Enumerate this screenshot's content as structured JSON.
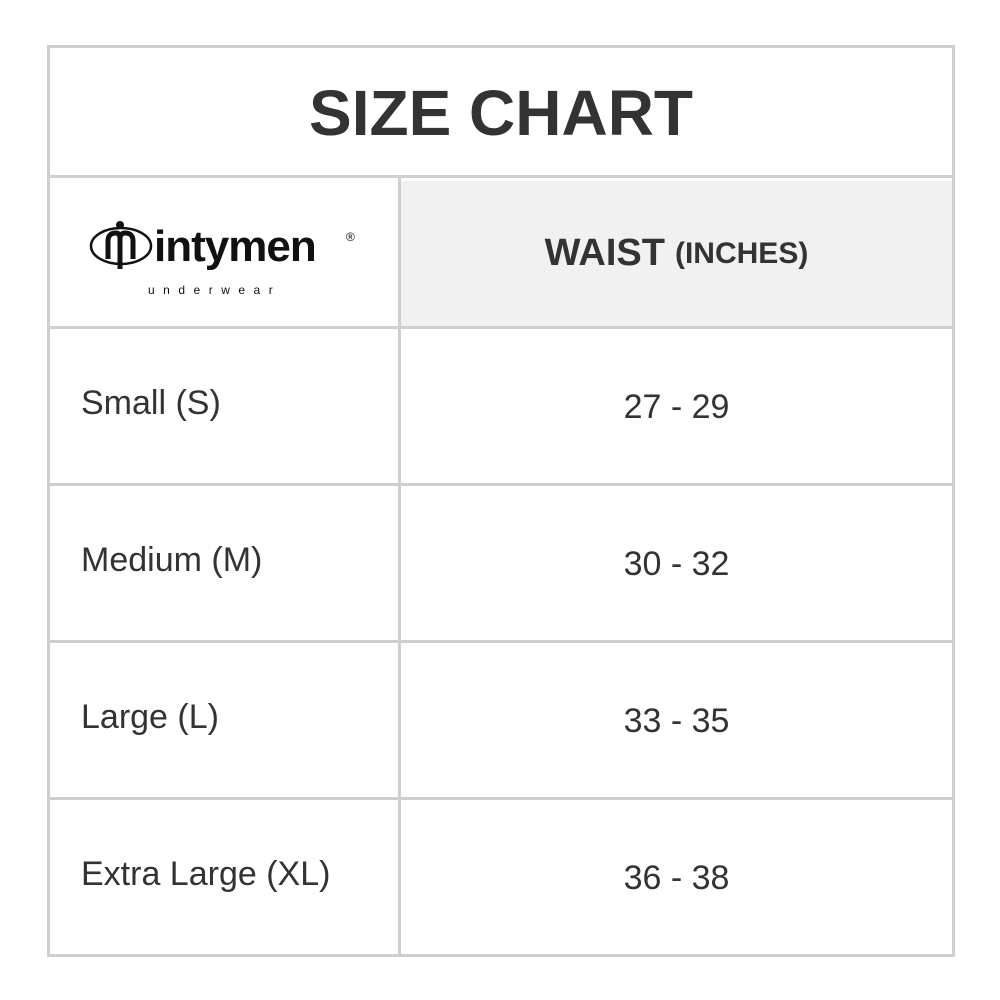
{
  "title": "SIZE CHART",
  "logo": {
    "brand": "intymen",
    "tagline": "underwear",
    "registered": "®"
  },
  "header": {
    "measure": "WAIST",
    "unit": "(INCHES)"
  },
  "rows": [
    {
      "size": "Small (S)",
      "waist": "27 - 29"
    },
    {
      "size": "Medium (M)",
      "waist": "30 - 32"
    },
    {
      "size": "Large (L)",
      "waist": "33 - 35"
    },
    {
      "size": "Extra Large (XL)",
      "waist": "36 - 38"
    }
  ],
  "colors": {
    "border": "#cfcfcf",
    "header_bg": "#f1f1f1",
    "text": "#333333"
  }
}
